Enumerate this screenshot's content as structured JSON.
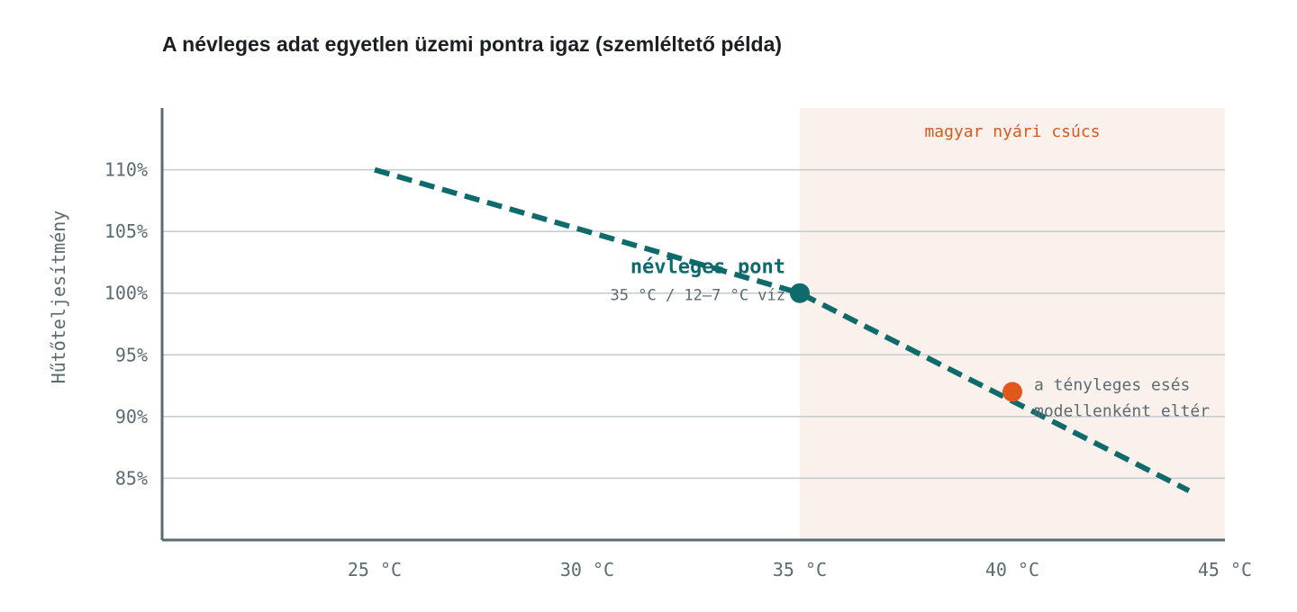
{
  "title": "A névleges adat egyetlen üzemi pontra igaz (szemléltető példa)",
  "chart_data": {
    "type": "line",
    "title": "A névleges adat egyetlen üzemi pontra igaz (szemléltető példa)",
    "ylabel": "Hűtőteljesítmény",
    "xlabel": "",
    "x_ticks": [
      "25 °C",
      "30 °C",
      "35 °C",
      "40 °C",
      "45 °C"
    ],
    "x_tick_values": [
      25,
      30,
      35,
      40,
      45
    ],
    "y_ticks": [
      "110%",
      "105%",
      "100%",
      "95%",
      "90%",
      "85%"
    ],
    "y_tick_values": [
      110,
      105,
      100,
      95,
      90,
      85
    ],
    "xlim": [
      20,
      45
    ],
    "ylim": [
      80,
      115
    ],
    "grid": true,
    "series": [
      {
        "x": [
          25,
          35,
          45
        ],
        "y": [
          110,
          100,
          84
        ],
        "color": "#0f6a6c",
        "style": "dashed"
      }
    ],
    "shaded_region": {
      "x_from": 35,
      "x_to": 45,
      "label": "magyar nyári csúcs",
      "color": "#fbf1ec",
      "label_color": "#d65a1c"
    },
    "points": [
      {
        "x": 35,
        "y": 100,
        "label": "névleges pont",
        "sublabel": "35 °C / 12–7 °C víz",
        "color": "#0f6a6c"
      },
      {
        "x": 40,
        "y": 92,
        "label_lines": [
          "a tényleges esés",
          "modellenként eltér"
        ],
        "color": "#e0581a"
      }
    ],
    "colors": {
      "axis": "#5b6b72",
      "grid": "#c3cbce",
      "tick_text": "#5b6b72"
    }
  }
}
